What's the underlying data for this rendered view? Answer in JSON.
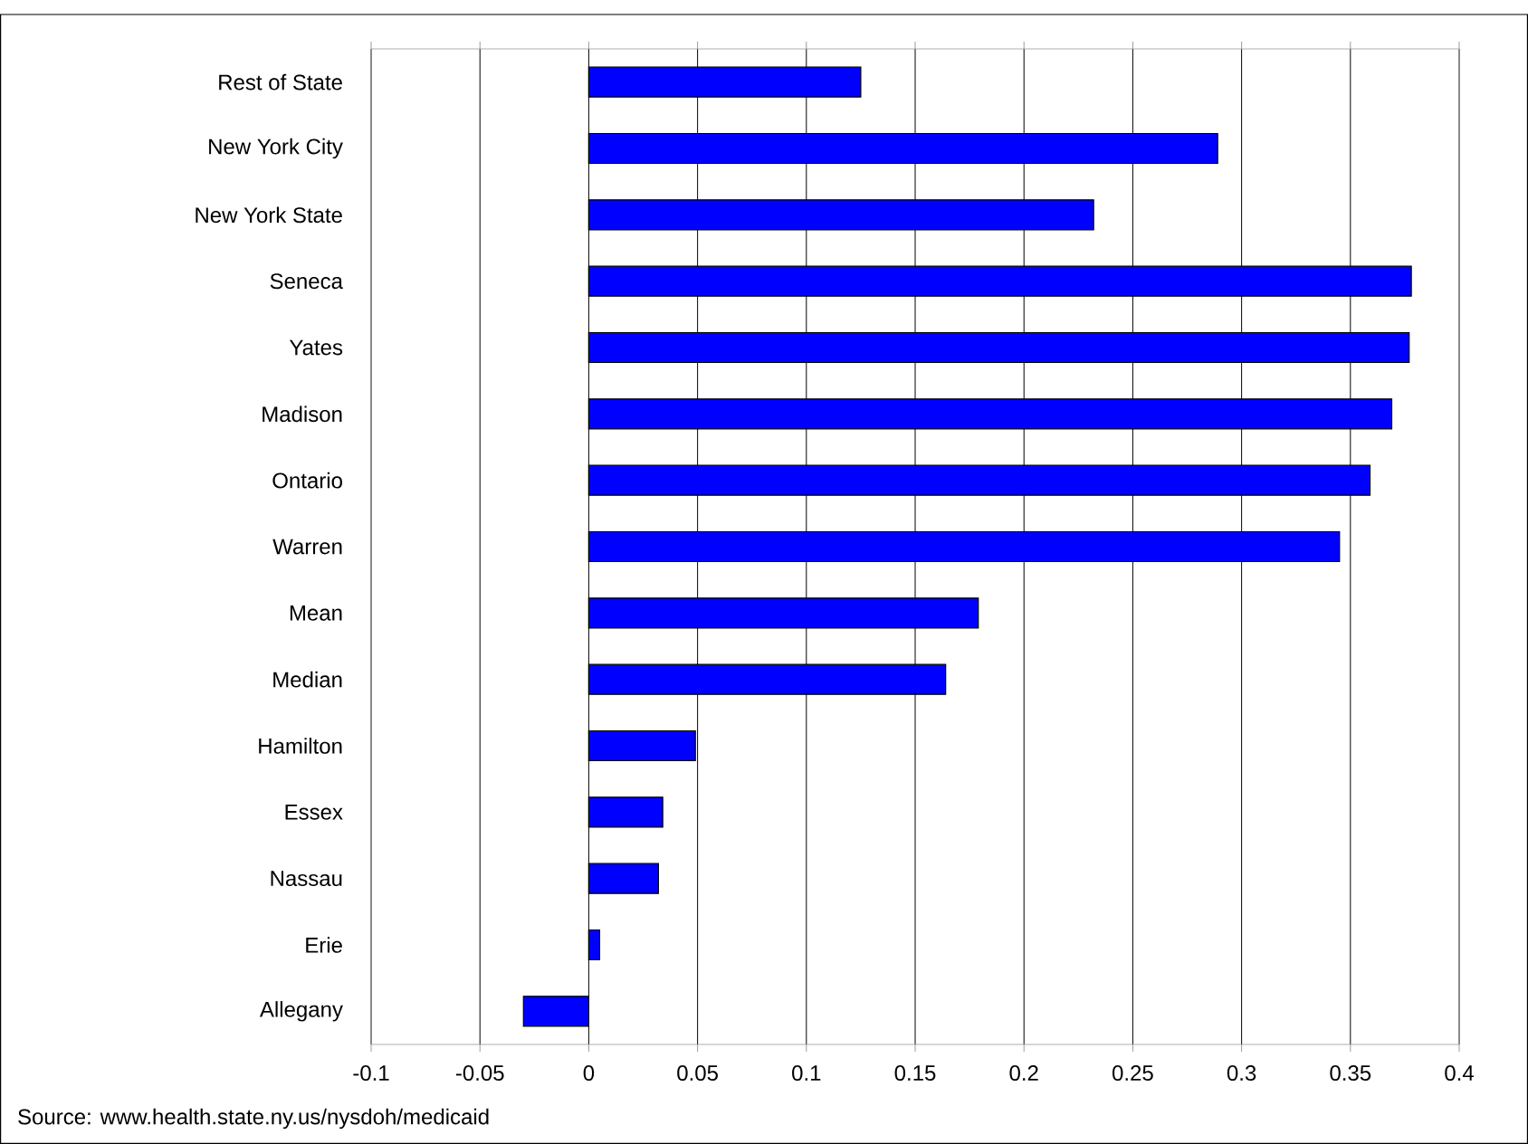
{
  "chart_data": {
    "type": "bar",
    "orientation": "horizontal",
    "categories": [
      "Rest of State",
      "New York City",
      "New York State",
      "Seneca",
      "Yates",
      "Madison",
      "Ontario",
      "Warren",
      "Mean",
      "Median",
      "Hamilton",
      "Essex",
      "Nassau",
      "Erie",
      "Allegany"
    ],
    "values": [
      0.125,
      0.289,
      0.232,
      0.378,
      0.377,
      0.369,
      0.359,
      0.345,
      0.179,
      0.164,
      0.049,
      0.034,
      0.032,
      0.005,
      -0.03
    ],
    "color": "#0000ff",
    "xlim": [
      -0.1,
      0.4
    ],
    "xticks": [
      -0.1,
      -0.05,
      0,
      0.05,
      0.1,
      0.15,
      0.2,
      0.25,
      0.3,
      0.35,
      0.4
    ],
    "grid": "x",
    "annotations": [
      "Source:    www.health.state.ny.us/nysdoh/medicaid"
    ]
  }
}
